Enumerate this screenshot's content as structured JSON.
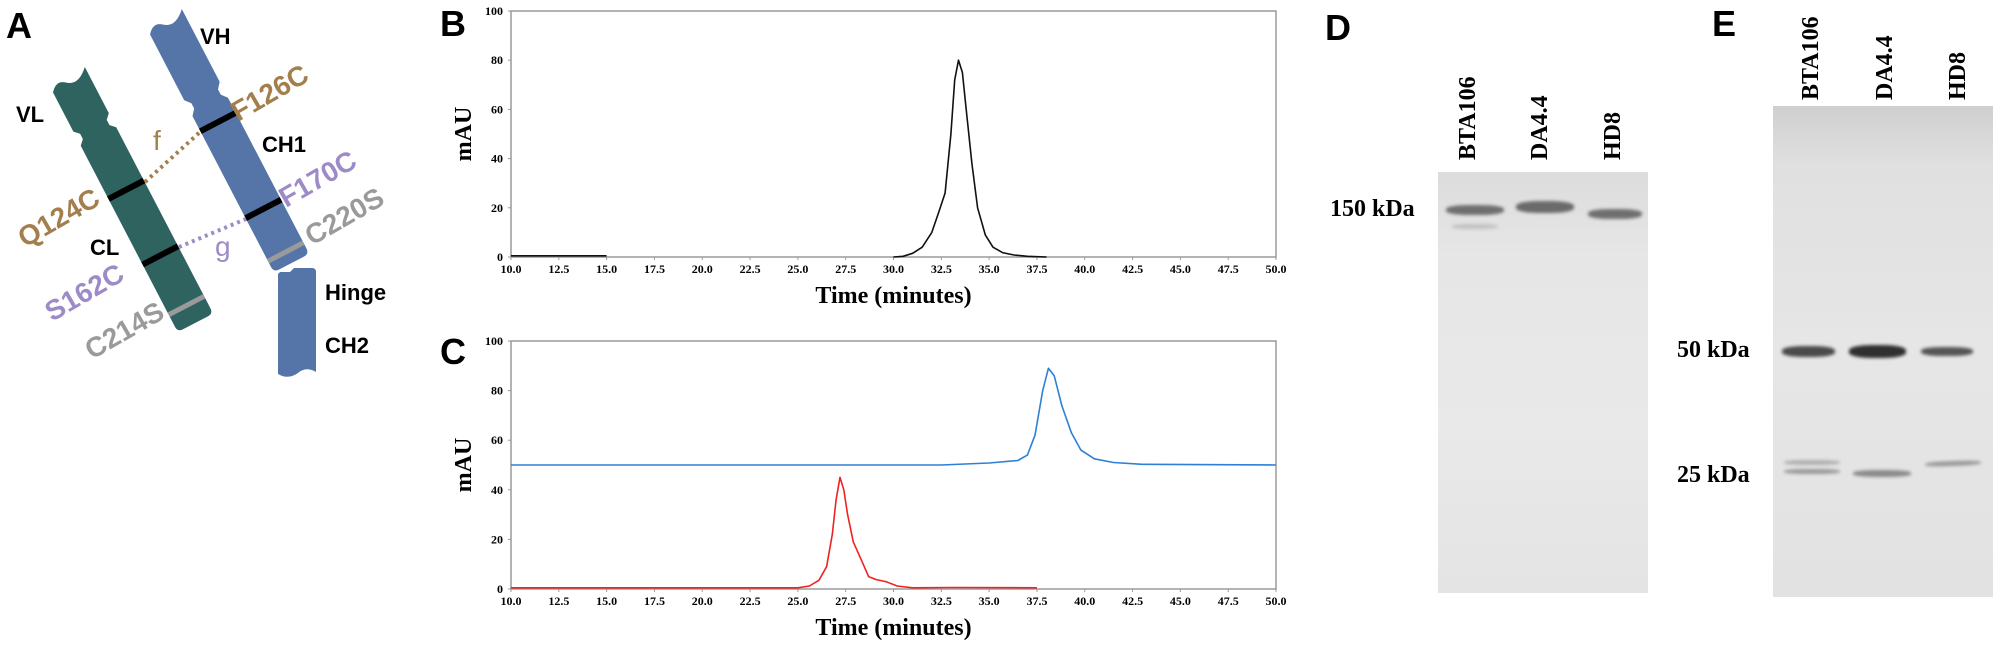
{
  "colors": {
    "light_chain": "#2e6360",
    "heavy_chain": "#5575a9",
    "pair_f": "#a47f4e",
    "pair_g": "#9d8bc8",
    "mutation_serine": "#9a9a9a",
    "series_black": "#111111",
    "series_blue": "#2f7fd6",
    "series_red": "#ee2222"
  },
  "panel_a": {
    "letter": "A",
    "domains": {
      "vh": "VH",
      "vl": "VL",
      "ch1": "CH1",
      "cl": "CL",
      "hinge": "Hinge",
      "ch2": "CH2"
    },
    "mutations": {
      "f126c": "F126C",
      "q124c": "Q124C",
      "f170c": "F170C",
      "s162c": "S162C",
      "c220s": "C220S",
      "c214s": "C214S"
    },
    "pairs": {
      "f": "f",
      "g": "g"
    }
  },
  "chart_data": [
    {
      "panel": "B",
      "type": "line",
      "xlabel": "Time (minutes)",
      "ylabel": "mAU",
      "xlim": [
        10,
        50
      ],
      "ylim": [
        0,
        100
      ],
      "xticks": [
        "10.0",
        "12.5",
        "15.0",
        "17.5",
        "20.0",
        "22.5",
        "25.0",
        "27.5",
        "30.0",
        "32.5",
        "35.0",
        "37.5",
        "40.0",
        "42.5",
        "45.0",
        "47.5",
        "50.0"
      ],
      "yticks": [
        "0",
        "20",
        "40",
        "60",
        "80",
        "100"
      ],
      "grid": false,
      "series": [
        {
          "color": "#111111",
          "points": [
            [
              10,
              0.5
            ],
            [
              15,
              0.5
            ]
          ]
        },
        {
          "color": "#111111",
          "points": [
            [
              30,
              0
            ],
            [
              30.5,
              0.3
            ],
            [
              31,
              1.5
            ],
            [
              31.5,
              4
            ],
            [
              32,
              10
            ],
            [
              32.4,
              19
            ],
            [
              32.7,
              26
            ],
            [
              33,
              50
            ],
            [
              33.2,
              72
            ],
            [
              33.4,
              80
            ],
            [
              33.6,
              75
            ],
            [
              33.8,
              60
            ],
            [
              34.1,
              38
            ],
            [
              34.4,
              20
            ],
            [
              34.8,
              9
            ],
            [
              35.2,
              4
            ],
            [
              35.7,
              1.8
            ],
            [
              36.3,
              0.8
            ],
            [
              37,
              0.3
            ],
            [
              38,
              0
            ]
          ]
        }
      ]
    },
    {
      "panel": "C",
      "type": "line",
      "xlabel": "Time (minutes)",
      "ylabel": "mAU",
      "xlim": [
        10,
        50
      ],
      "ylim": [
        0,
        100
      ],
      "xticks": [
        "10.0",
        "12.5",
        "15.0",
        "17.5",
        "20.0",
        "22.5",
        "25.0",
        "27.5",
        "30.0",
        "32.5",
        "35.0",
        "37.5",
        "40.0",
        "42.5",
        "45.0",
        "47.5",
        "50.0"
      ],
      "yticks": [
        "0",
        "20",
        "40",
        "60",
        "80",
        "100"
      ],
      "grid": false,
      "series": [
        {
          "color": "#2f7fd6",
          "points": [
            [
              10,
              50
            ],
            [
              32.5,
              50
            ],
            [
              35,
              50.8
            ],
            [
              36.5,
              51.8
            ],
            [
              37,
              54
            ],
            [
              37.4,
              62
            ],
            [
              37.8,
              80
            ],
            [
              38.1,
              89
            ],
            [
              38.4,
              86
            ],
            [
              38.8,
              74
            ],
            [
              39.3,
              63
            ],
            [
              39.8,
              56
            ],
            [
              40.5,
              52.5
            ],
            [
              41.5,
              51
            ],
            [
              43,
              50.3
            ],
            [
              50,
              50
            ]
          ]
        },
        {
          "color": "#ee2222",
          "points": [
            [
              10,
              0.5
            ],
            [
              25,
              0.5
            ],
            [
              25.6,
              1.2
            ],
            [
              26.1,
              3.5
            ],
            [
              26.5,
              9
            ],
            [
              26.8,
              22
            ],
            [
              27.0,
              36
            ],
            [
              27.2,
              45
            ],
            [
              27.4,
              40
            ],
            [
              27.6,
              30
            ],
            [
              27.9,
              19
            ],
            [
              28.3,
              12
            ],
            [
              28.7,
              5
            ],
            [
              29.1,
              3.8
            ],
            [
              29.6,
              3
            ],
            [
              30.2,
              1.2
            ],
            [
              31,
              0.5
            ],
            [
              33,
              0.6
            ],
            [
              37.5,
              0.5
            ]
          ]
        }
      ]
    }
  ],
  "panel_labels": {
    "b": "B",
    "c": "C"
  },
  "panel_d": {
    "letter": "D",
    "lanes": [
      "BTA106",
      "DA4.4",
      "HD8"
    ],
    "markers": [
      "150 kDa"
    ]
  },
  "panel_e": {
    "letter": "E",
    "lanes": [
      "BTA106",
      "DA4.4",
      "HD8"
    ],
    "markers": [
      "50 kDa",
      "25 kDa"
    ]
  }
}
